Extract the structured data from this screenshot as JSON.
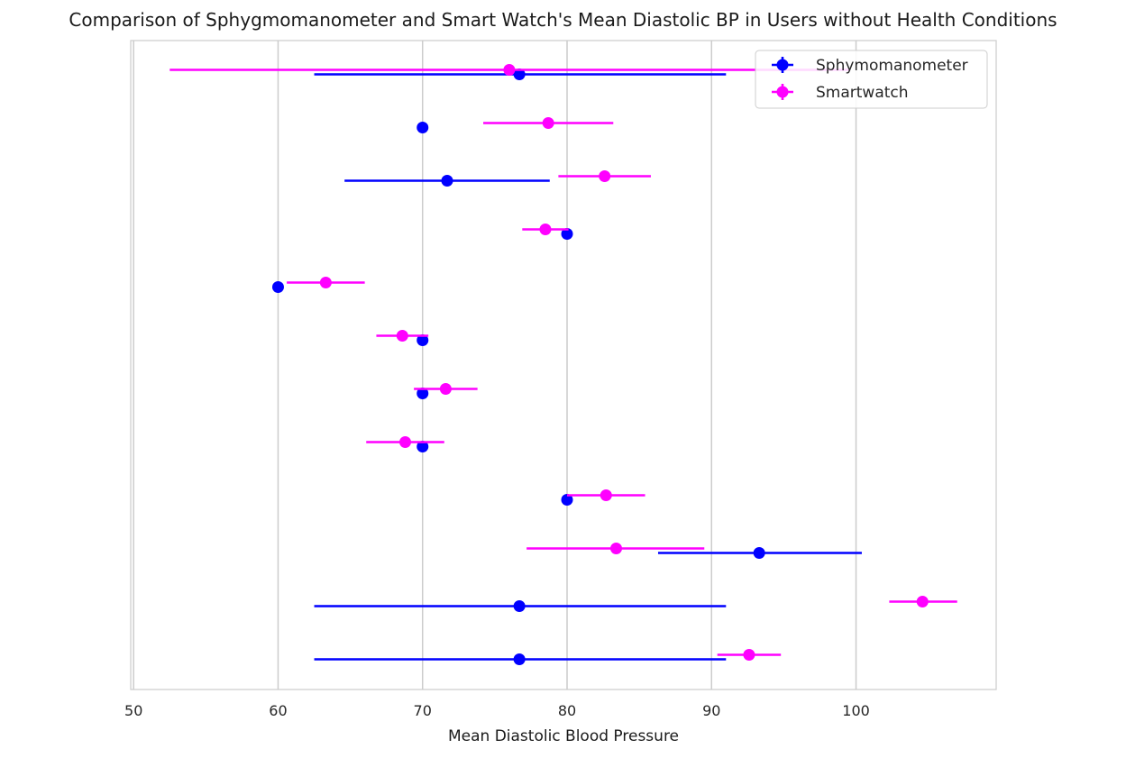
{
  "chart_data": {
    "type": "scatter",
    "title": "Comparison of Sphygmomanometer and Smart Watch's Mean Diastolic BP in Users without Health Conditions",
    "xlabel": "Mean Diastolic Blood Pressure",
    "ylabel": "",
    "xlim": [
      49.8,
      109.7
    ],
    "x_ticks": [
      50,
      60,
      70,
      80,
      90,
      100
    ],
    "grid": "vertical",
    "legend_position": "top-right",
    "errorbars": "horizontal",
    "series": [
      {
        "name": "Sphymomanometer",
        "color": "#0000ff",
        "points": [
          {
            "x": 76.7,
            "xmin": 62.5,
            "xmax": 91.0
          },
          {
            "x": 70.0,
            "xmin": 70.0,
            "xmax": 70.0
          },
          {
            "x": 71.7,
            "xmin": 64.6,
            "xmax": 78.8
          },
          {
            "x": 80.0,
            "xmin": 80.0,
            "xmax": 80.0
          },
          {
            "x": 60.0,
            "xmin": 60.0,
            "xmax": 60.0
          },
          {
            "x": 70.0,
            "xmin": 70.0,
            "xmax": 70.0
          },
          {
            "x": 70.0,
            "xmin": 70.0,
            "xmax": 70.0
          },
          {
            "x": 70.0,
            "xmin": 70.0,
            "xmax": 70.0
          },
          {
            "x": 80.0,
            "xmin": 80.0,
            "xmax": 80.0
          },
          {
            "x": 93.3,
            "xmin": 86.3,
            "xmax": 100.4
          },
          {
            "x": 76.7,
            "xmin": 62.5,
            "xmax": 91.0
          },
          {
            "x": 76.7,
            "xmin": 62.5,
            "xmax": 91.0
          }
        ]
      },
      {
        "name": "Smartwatch",
        "color": "#ff00ff",
        "points": [
          {
            "x": 76.0,
            "xmin": 52.5,
            "xmax": 99.5
          },
          {
            "x": 78.7,
            "xmin": 74.2,
            "xmax": 83.2
          },
          {
            "x": 82.6,
            "xmin": 79.4,
            "xmax": 85.8
          },
          {
            "x": 78.5,
            "xmin": 76.9,
            "xmax": 80.1
          },
          {
            "x": 63.3,
            "xmin": 60.6,
            "xmax": 66.0
          },
          {
            "x": 68.6,
            "xmin": 66.8,
            "xmax": 70.4
          },
          {
            "x": 71.6,
            "xmin": 69.4,
            "xmax": 73.8
          },
          {
            "x": 68.8,
            "xmin": 66.1,
            "xmax": 71.5
          },
          {
            "x": 82.7,
            "xmin": 80.0,
            "xmax": 85.4
          },
          {
            "x": 83.4,
            "xmin": 77.2,
            "xmax": 89.5
          },
          {
            "x": 104.6,
            "xmin": 102.3,
            "xmax": 107.0
          },
          {
            "x": 92.6,
            "xmin": 90.4,
            "xmax": 94.8
          }
        ]
      }
    ]
  }
}
